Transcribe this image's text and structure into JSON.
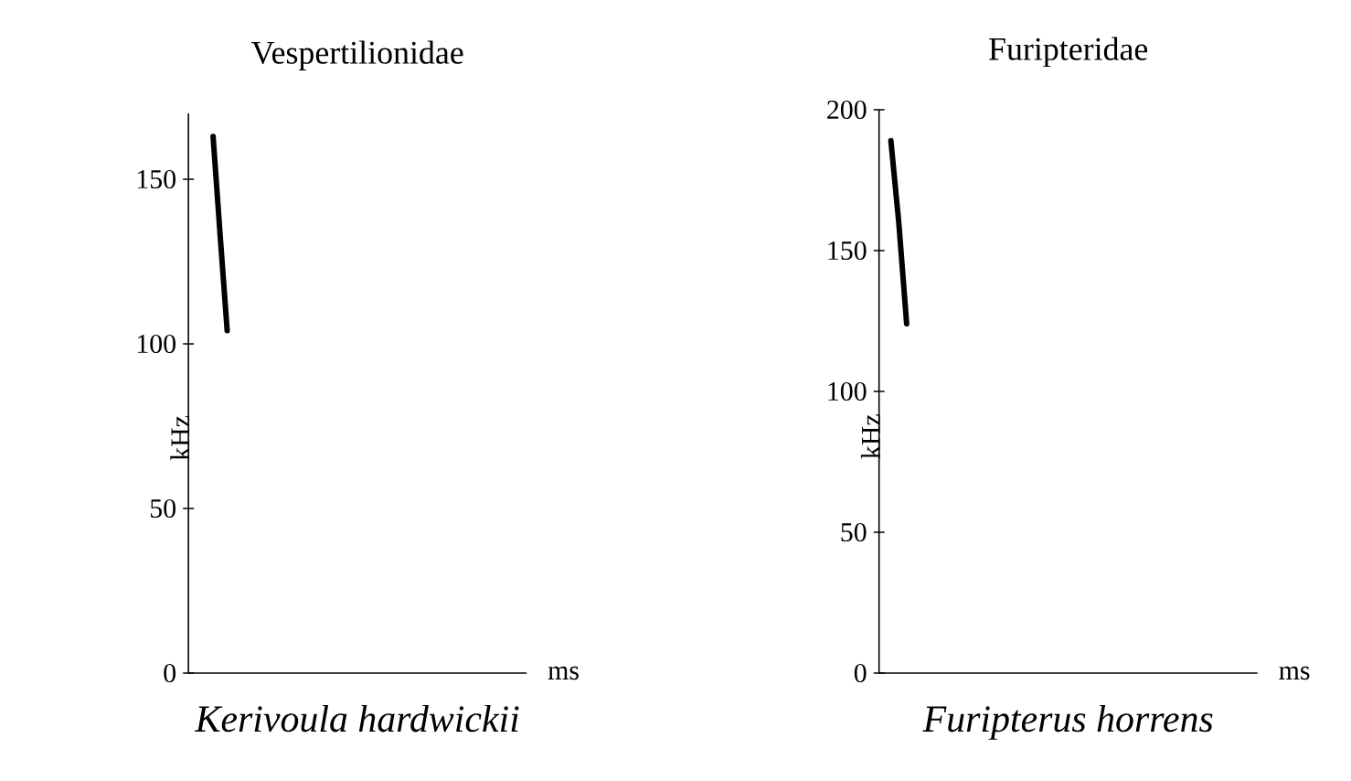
{
  "chart_data": [
    {
      "type": "line",
      "title": "Vespertilionidae",
      "xlabel": "ms",
      "ylabel": "kHz",
      "annotations": [
        "Kerivoula hardwickii"
      ],
      "categories": [
        null,
        null,
        null,
        null,
        null,
        null,
        null,
        null,
        null,
        null,
        null,
        null,
        null,
        null,
        null,
        null,
        null,
        null,
        null,
        null,
        null,
        null,
        null,
        null,
        null,
        null,
        null,
        null,
        null,
        null,
        null,
        null,
        null,
        null,
        null,
        null,
        null,
        null,
        null,
        null,
        null,
        null,
        null,
        null,
        null,
        null,
        null,
        null
      ],
      "series": [
        {
          "color": "#000000",
          "values": [
            null,
            null,
            null,
            163,
            133,
            104,
            null,
            null,
            null,
            null,
            null,
            null,
            null,
            null,
            null,
            null,
            null,
            null,
            null,
            null,
            null,
            null,
            null,
            null,
            null,
            null,
            null,
            null,
            null,
            null,
            null,
            null,
            null,
            null,
            null,
            null,
            null,
            null,
            null,
            null,
            null,
            null,
            null,
            null,
            null,
            null,
            null,
            null
          ]
        }
      ],
      "ylim": [
        0,
        170
      ],
      "yticks": [
        0,
        50,
        100,
        150
      ],
      "tick_labels": "y"
    },
    {
      "type": "line",
      "title": "Furipteridae",
      "xlabel": "ms",
      "ylabel": "kHz",
      "annotations": [
        "Furipterus horrens"
      ],
      "categories": [
        null,
        null,
        null,
        null,
        null,
        null,
        null,
        null,
        null,
        null,
        null,
        null,
        null,
        null,
        null,
        null,
        null,
        null,
        null,
        null,
        null,
        null,
        null,
        null,
        null,
        null,
        null,
        null,
        null,
        null,
        null,
        null,
        null,
        null,
        null,
        null,
        null,
        null,
        null,
        null,
        null,
        null,
        null,
        null,
        null,
        null,
        null,
        null
      ],
      "series": [
        {
          "color": "#000000",
          "values": [
            null,
            189,
            160,
            124,
            null,
            null,
            null,
            null,
            null,
            null,
            null,
            null,
            null,
            null,
            null,
            null,
            null,
            null,
            null,
            null,
            null,
            null,
            null,
            null,
            null,
            null,
            null,
            null,
            null,
            null,
            null,
            null,
            null,
            null,
            null,
            null,
            null,
            null,
            null,
            null,
            null,
            null,
            null,
            null,
            null,
            null,
            null,
            null
          ]
        }
      ],
      "ylim": [
        0,
        200
      ],
      "yticks": [
        0,
        50,
        100,
        150,
        200
      ],
      "tick_labels": "y"
    }
  ]
}
